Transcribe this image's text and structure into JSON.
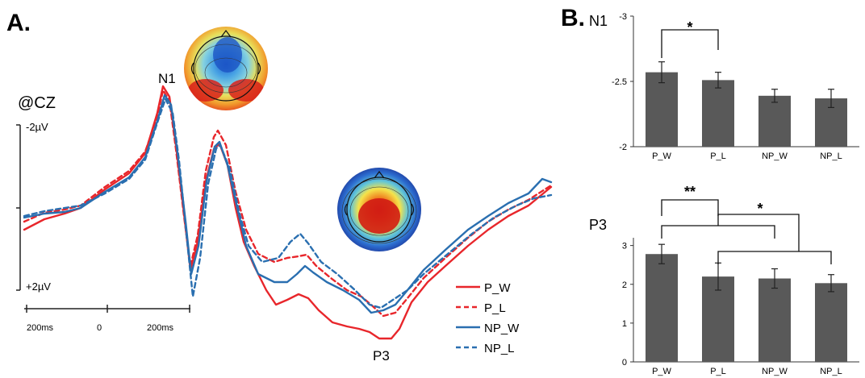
{
  "panel_a": {
    "letter": "A.",
    "channel": "@CZ",
    "scale_top": "-2µV",
    "scale_bottom": "+2µV",
    "time_ticks": [
      "200ms",
      "0",
      "200ms"
    ],
    "n1_label": "N1",
    "p3_label": "P3"
  },
  "panel_b": {
    "letter": "B.",
    "n1_title": "N1",
    "p3_title": "P3"
  },
  "colors": {
    "red": "#e8262b",
    "blue": "#2a6fb0",
    "bar": "#595959",
    "axis": "#333333"
  },
  "chart_data": [
    {
      "type": "line",
      "name": "erp",
      "legend": [
        "P_W",
        "P_L",
        "NP_W",
        "NP_L"
      ],
      "x_ticks": [
        "200ms",
        "0",
        "200ms"
      ],
      "series": [
        {
          "name": "P_W",
          "color": "#e8262b",
          "dash": false,
          "points": [
            [
              30,
              285
            ],
            [
              55,
              272
            ],
            [
              80,
              265
            ],
            [
              100,
              258
            ],
            [
              130,
              235
            ],
            [
              160,
              215
            ],
            [
              180,
              190
            ],
            [
              195,
              140
            ],
            [
              202,
              107
            ],
            [
              210,
              120
            ],
            [
              218,
              180
            ],
            [
              228,
              265
            ],
            [
              236,
              335
            ],
            [
              245,
              300
            ],
            [
              255,
              225
            ],
            [
              265,
              185
            ],
            [
              272,
              178
            ],
            [
              282,
              205
            ],
            [
              292,
              258
            ],
            [
              302,
              300
            ],
            [
              315,
              330
            ],
            [
              330,
              360
            ],
            [
              342,
              378
            ],
            [
              356,
              372
            ],
            [
              370,
              365
            ],
            [
              382,
              370
            ],
            [
              395,
              385
            ],
            [
              412,
              400
            ],
            [
              430,
              405
            ],
            [
              445,
              408
            ],
            [
              458,
              412
            ],
            [
              470,
              420
            ],
            [
              485,
              420
            ],
            [
              495,
              408
            ],
            [
              510,
              375
            ],
            [
              530,
              350
            ],
            [
              552,
              330
            ],
            [
              580,
              305
            ],
            [
              605,
              285
            ],
            [
              630,
              268
            ],
            [
              655,
              255
            ],
            [
              683,
              232
            ]
          ]
        },
        {
          "name": "P_L",
          "color": "#e8262b",
          "dash": true,
          "points": [
            [
              30,
              275
            ],
            [
              55,
              264
            ],
            [
              80,
              260
            ],
            [
              100,
              255
            ],
            [
              130,
              232
            ],
            [
              160,
              212
            ],
            [
              180,
              188
            ],
            [
              195,
              145
            ],
            [
              202,
              112
            ],
            [
              210,
              125
            ],
            [
              218,
              185
            ],
            [
              228,
              268
            ],
            [
              236,
              330
            ],
            [
              245,
              292
            ],
            [
              255,
              212
            ],
            [
              265,
              170
            ],
            [
              270,
              162
            ],
            [
              280,
              180
            ],
            [
              292,
              238
            ],
            [
              305,
              285
            ],
            [
              320,
              315
            ],
            [
              340,
              325
            ],
            [
              356,
              320
            ],
            [
              370,
              318
            ],
            [
              380,
              316
            ],
            [
              392,
              330
            ],
            [
              410,
              345
            ],
            [
              430,
              360
            ],
            [
              448,
              368
            ],
            [
              462,
              380
            ],
            [
              475,
              392
            ],
            [
              490,
              388
            ],
            [
              505,
              370
            ],
            [
              525,
              345
            ],
            [
              552,
              320
            ],
            [
              580,
              295
            ],
            [
              605,
              275
            ],
            [
              630,
              260
            ],
            [
              655,
              248
            ],
            [
              683,
              230
            ]
          ]
        },
        {
          "name": "NP_W",
          "color": "#2a6fb0",
          "dash": false,
          "points": [
            [
              30,
              270
            ],
            [
              55,
              265
            ],
            [
              80,
              263
            ],
            [
              100,
              258
            ],
            [
              130,
              238
            ],
            [
              160,
              220
            ],
            [
              180,
              195
            ],
            [
              195,
              150
            ],
            [
              204,
              118
            ],
            [
              212,
              130
            ],
            [
              220,
              190
            ],
            [
              230,
              275
            ],
            [
              237,
              340
            ],
            [
              246,
              305
            ],
            [
              256,
              225
            ],
            [
              266,
              182
            ],
            [
              272,
              176
            ],
            [
              282,
              205
            ],
            [
              294,
              258
            ],
            [
              305,
              305
            ],
            [
              320,
              340
            ],
            [
              340,
              350
            ],
            [
              356,
              350
            ],
            [
              368,
              340
            ],
            [
              378,
              330
            ],
            [
              388,
              338
            ],
            [
              405,
              350
            ],
            [
              425,
              360
            ],
            [
              445,
              372
            ],
            [
              460,
              388
            ],
            [
              475,
              385
            ],
            [
              490,
              378
            ],
            [
              505,
              360
            ],
            [
              525,
              335
            ],
            [
              552,
              310
            ],
            [
              580,
              285
            ],
            [
              605,
              268
            ],
            [
              630,
              252
            ],
            [
              655,
              240
            ],
            [
              672,
              222
            ],
            [
              683,
              226
            ]
          ]
        },
        {
          "name": "NP_L",
          "color": "#2a6fb0",
          "dash": true,
          "points": [
            [
              30,
              268
            ],
            [
              55,
              262
            ],
            [
              80,
              258
            ],
            [
              100,
              255
            ],
            [
              130,
              240
            ],
            [
              160,
              222
            ],
            [
              180,
              198
            ],
            [
              195,
              152
            ],
            [
              205,
              123
            ],
            [
              214,
              140
            ],
            [
              222,
              200
            ],
            [
              232,
              300
            ],
            [
              239,
              368
            ],
            [
              248,
              320
            ],
            [
              258,
              228
            ],
            [
              268,
              184
            ],
            [
              273,
              180
            ],
            [
              285,
              210
            ],
            [
              296,
              262
            ],
            [
              308,
              305
            ],
            [
              325,
              325
            ],
            [
              345,
              320
            ],
            [
              360,
              300
            ],
            [
              372,
              290
            ],
            [
              382,
              302
            ],
            [
              398,
              325
            ],
            [
              418,
              340
            ],
            [
              440,
              360
            ],
            [
              458,
              378
            ],
            [
              472,
              382
            ],
            [
              487,
              372
            ],
            [
              505,
              360
            ],
            [
              525,
              340
            ],
            [
              555,
              315
            ],
            [
              585,
              290
            ],
            [
              612,
              270
            ],
            [
              640,
              255
            ],
            [
              662,
              246
            ],
            [
              683,
              242
            ]
          ]
        }
      ]
    },
    {
      "type": "bar",
      "name": "N1",
      "title": "N1",
      "categories": [
        "P_W",
        "P_L",
        "NP_W",
        "NP_L"
      ],
      "values": [
        -2.57,
        -2.51,
        -2.39,
        -2.37
      ],
      "errors": [
        0.08,
        0.06,
        0.05,
        0.07
      ],
      "y_ticks": [
        "-3",
        "-2.5",
        "-2"
      ],
      "ylim": [
        -2,
        -3
      ],
      "annotations": [
        {
          "from": "P_W",
          "to": "P_L",
          "label": "*"
        }
      ]
    },
    {
      "type": "bar",
      "name": "P3",
      "title": "P3",
      "categories": [
        "P_W",
        "P_L",
        "NP_W",
        "NP_L"
      ],
      "values": [
        2.78,
        2.2,
        2.15,
        2.03
      ],
      "errors": [
        0.25,
        0.35,
        0.25,
        0.22
      ],
      "y_ticks": [
        "0",
        "1",
        "2",
        "3"
      ],
      "ylim": [
        0,
        3.2
      ],
      "annotations": [
        {
          "from": "P_W",
          "to": "P_L",
          "label": "**"
        },
        {
          "group": [
            "P_W|NP_W",
            "P_L|NP_L"
          ],
          "label": "*"
        }
      ]
    }
  ]
}
